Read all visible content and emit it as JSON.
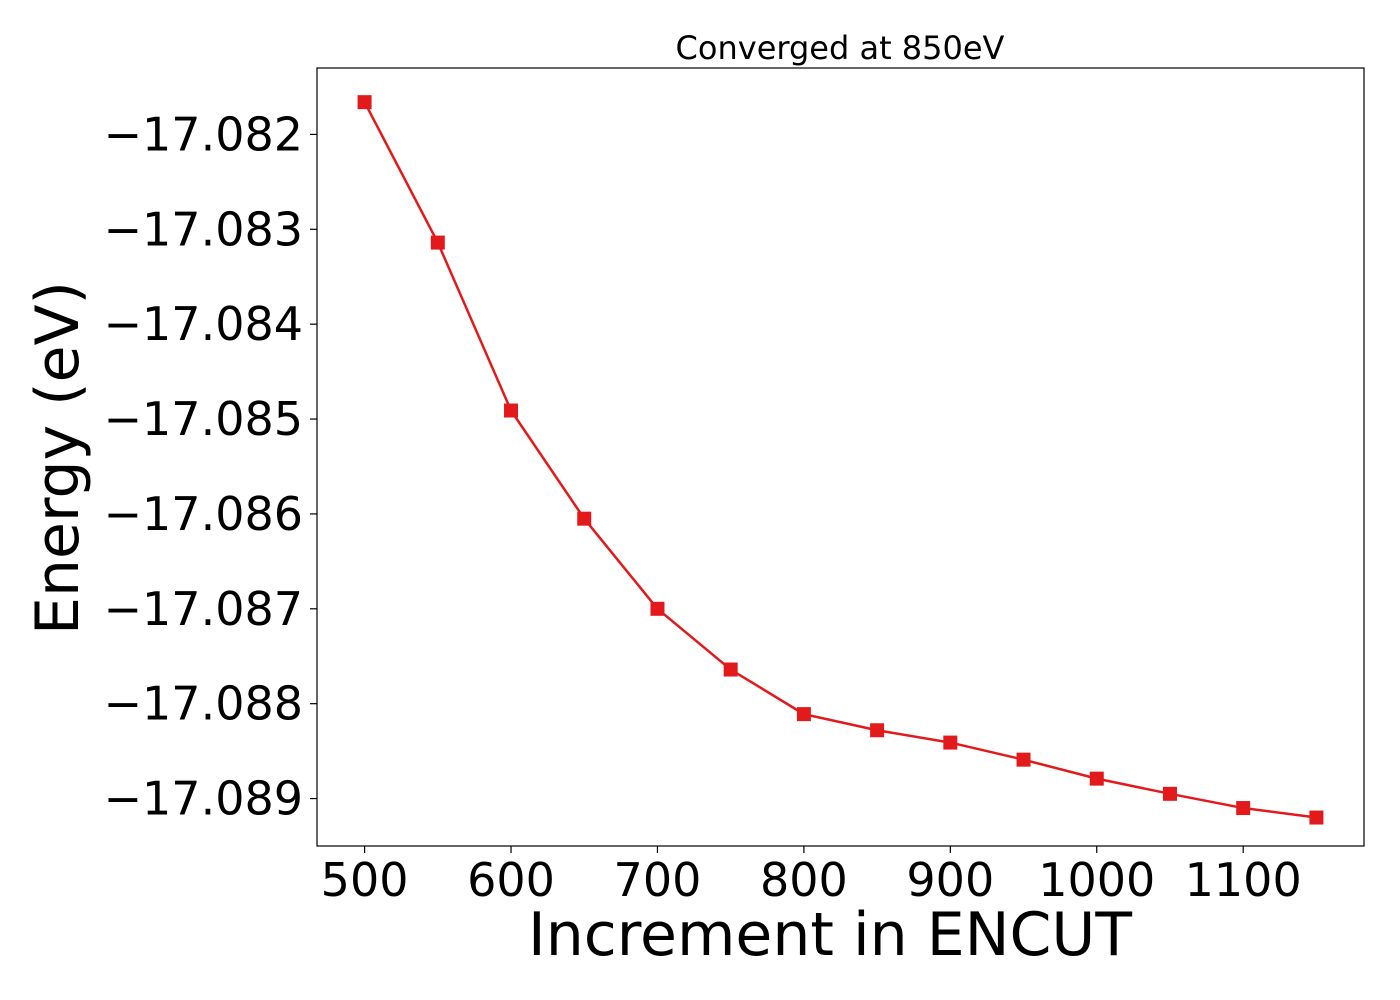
{
  "chart_data": {
    "type": "line",
    "title": "Converged at 850eV",
    "xlabel": "Increment in ENCUT",
    "ylabel": "Energy (eV)",
    "xlim": [
      467.5,
      1182.5
    ],
    "ylim": [
      -17.0895,
      -17.0813
    ],
    "xticks": [
      500,
      600,
      700,
      800,
      900,
      1000,
      1100
    ],
    "xtick_labels": [
      "500",
      "600",
      "700",
      "800",
      "900",
      "1000",
      "1100"
    ],
    "yticks": [
      -17.082,
      -17.083,
      -17.084,
      -17.085,
      -17.086,
      -17.087,
      -17.088,
      -17.089
    ],
    "ytick_labels": [
      "−17.082",
      "−17.083",
      "−17.084",
      "−17.085",
      "−17.086",
      "−17.087",
      "−17.088",
      "−17.089"
    ],
    "grid": false,
    "series": [
      {
        "color": "#e31a1c",
        "marker": "square",
        "x": [
          500,
          550,
          600,
          650,
          700,
          750,
          800,
          850,
          900,
          950,
          1000,
          1050,
          1100,
          1150
        ],
        "y": [
          -17.08166,
          -17.08314,
          -17.08491,
          -17.08605,
          -17.087,
          -17.08764,
          -17.08811,
          -17.08828,
          -17.08841,
          -17.08859,
          -17.08879,
          -17.08895,
          -17.0891,
          -17.0892
        ]
      }
    ]
  }
}
